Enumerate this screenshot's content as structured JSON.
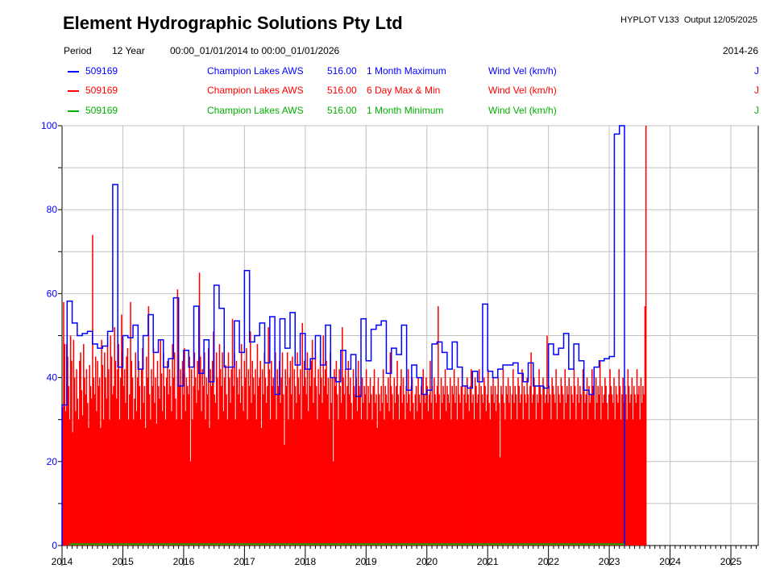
{
  "header": {
    "title": "Element Hydrographic Solutions Pty Ltd",
    "program": "HYPLOT V133",
    "output": "Output 12/05/2025"
  },
  "period": {
    "label": "Period",
    "length": "12 Year",
    "range": "00:00_01/01/2014 to 00:00_01/01/2026",
    "short": "2014-26"
  },
  "legend": [
    {
      "site": "509169",
      "name": "Champion Lakes AWS",
      "datum": "516.00",
      "stat": "1 Month Maximum",
      "variable": "Wind Vel (km/h)",
      "flag": "J",
      "color": "#0000ff"
    },
    {
      "site": "509169",
      "name": "Champion Lakes AWS",
      "datum": "516.00",
      "stat": "6 Day Max & Min",
      "variable": "Wind Vel (km/h)",
      "flag": "J",
      "color": "#ff0000"
    },
    {
      "site": "509169",
      "name": "Champion Lakes AWS",
      "datum": "516.00",
      "stat": "1 Month Minimum",
      "variable": "Wind Vel (km/h)",
      "flag": "J",
      "color": "#00b000"
    }
  ],
  "chart_data": {
    "type": "line",
    "xlabel": "",
    "ylabel": "",
    "ylim": [
      0,
      100
    ],
    "xlim": [
      2014.0,
      2025.45
    ],
    "y_ticks": [
      "0",
      "20",
      "40",
      "60",
      "80",
      "100"
    ],
    "x_ticks": [
      "2014",
      "2015",
      "2016",
      "2017",
      "2018",
      "2019",
      "2020",
      "2021",
      "2022",
      "2023",
      "2024",
      "2025"
    ],
    "grid": true,
    "series": [
      {
        "name": "1 Month Maximum",
        "color": "#0000ff",
        "step": "month",
        "start": 2014.0,
        "values": [
          33.5,
          58.2,
          53,
          50,
          50.5,
          51,
          48,
          47,
          47.5,
          51,
          86,
          42.5,
          50,
          49.5,
          52.5,
          42,
          50,
          55,
          46,
          49,
          42.5,
          44.5,
          59,
          38,
          46.5,
          42.5,
          57,
          41,
          49,
          39,
          62,
          56.5,
          42.5,
          42.5,
          53.5,
          46,
          65.5,
          48.5,
          50,
          53,
          43.5,
          54.5,
          36,
          54,
          47,
          55.5,
          43,
          50.5,
          42,
          44.5,
          50,
          43,
          52.5,
          40,
          39,
          46.5,
          42,
          45.5,
          35.5,
          54,
          44,
          51.5,
          52.5,
          53.5,
          41,
          47,
          45.5,
          52.5,
          37,
          43,
          40,
          36,
          37,
          48,
          48.5,
          46,
          42,
          48.5,
          42.5,
          38,
          37.5,
          41.5,
          39,
          57.5,
          41.5,
          40,
          42,
          43,
          43,
          43.5,
          41,
          39,
          43.5,
          38,
          38,
          37.5,
          48,
          45.5,
          47,
          50.5,
          42,
          48,
          44,
          37,
          36,
          42.5,
          44,
          44.5,
          45,
          98,
          100
        ]
      },
      {
        "name": "6 Day Max & Min",
        "color": "#ff0000",
        "step": "6day",
        "start": 2014.0,
        "values": [
          33,
          58,
          48,
          32,
          48,
          45,
          38,
          30,
          50,
          44,
          27,
          49,
          40,
          32,
          42,
          35,
          30,
          44,
          46,
          37,
          31,
          48,
          40,
          36,
          42,
          34,
          28,
          43,
          38,
          35,
          74,
          40,
          36,
          45,
          32,
          44,
          38,
          40,
          28,
          49,
          43,
          30,
          46,
          40,
          35,
          48,
          42,
          30,
          50,
          45,
          36,
          38,
          52,
          44,
          35,
          42,
          48,
          30,
          40,
          55,
          46,
          38,
          42,
          34,
          45,
          47,
          30,
          36,
          58,
          44,
          40,
          30,
          35,
          46,
          32,
          40,
          44,
          38,
          30,
          42,
          47,
          34,
          38,
          28,
          45,
          40,
          57,
          36,
          30,
          42,
          38,
          47,
          34,
          40,
          29,
          44,
          38,
          35,
          49,
          41,
          32,
          46,
          38,
          30,
          40,
          44,
          36,
          42,
          38,
          32,
          48,
          40,
          46,
          35,
          30,
          61,
          46,
          38,
          42,
          30,
          44,
          36,
          47,
          32,
          40,
          38,
          36,
          45,
          20,
          42,
          30,
          38,
          46,
          40,
          34,
          44,
          37,
          65,
          45,
          32,
          42,
          38,
          46,
          30,
          40,
          36,
          47,
          28,
          42,
          38,
          44,
          51,
          36,
          34,
          46,
          40,
          30,
          48,
          42,
          38,
          46,
          32,
          40,
          43,
          36,
          30,
          46,
          40,
          34,
          42,
          54,
          38,
          46,
          30,
          44,
          40,
          36,
          42,
          34,
          48,
          38,
          32,
          44,
          40,
          47,
          30,
          42,
          38,
          51,
          34,
          44,
          40,
          36,
          42,
          30,
          48,
          38,
          40,
          44,
          28,
          42,
          36,
          46,
          40,
          34,
          38,
          52,
          42,
          30,
          44,
          38,
          40,
          36,
          46,
          30,
          42,
          38,
          44,
          34,
          40,
          46,
          36,
          24,
          42,
          38,
          46,
          30,
          40,
          44,
          36,
          45,
          30,
          42,
          38,
          34,
          46,
          40,
          36,
          42,
          30,
          53,
          38,
          44,
          40,
          36,
          46,
          32,
          42,
          38,
          44,
          49,
          34,
          40,
          46,
          38,
          30,
          42,
          36,
          44,
          40,
          34,
          50,
          38,
          42,
          44,
          36,
          40,
          30,
          46,
          34,
          40,
          20,
          42,
          38,
          44,
          36,
          30,
          42,
          38,
          34,
          52,
          40,
          36,
          42,
          30,
          38,
          44,
          36,
          40,
          34,
          30,
          42,
          38,
          36,
          40,
          32,
          44,
          38,
          36,
          30,
          40,
          34,
          38,
          36,
          42,
          30,
          38,
          34,
          40,
          36,
          30,
          38,
          42,
          34,
          36,
          28,
          40,
          36,
          32,
          38,
          34,
          42,
          30,
          38,
          36,
          34,
          40,
          32,
          46,
          38,
          36,
          30,
          40,
          34,
          38,
          44,
          36,
          30,
          38,
          42,
          34,
          40,
          36,
          30,
          38,
          34,
          42,
          36,
          32,
          38,
          40,
          34,
          30,
          36,
          38,
          32,
          40,
          36,
          34,
          38,
          30,
          42,
          36,
          34,
          40,
          38,
          32,
          36,
          44,
          34,
          38,
          30,
          40,
          36,
          34,
          38,
          57,
          36,
          30,
          40,
          34,
          38,
          36,
          42,
          32,
          38,
          36,
          34,
          40,
          30,
          38,
          36,
          42,
          34,
          38,
          30,
          40,
          36,
          34,
          38,
          42,
          30,
          36,
          38,
          34,
          40,
          36,
          32,
          38,
          42,
          34,
          36,
          30,
          40,
          38,
          34,
          36,
          42,
          30,
          38,
          36,
          34,
          40,
          38,
          32,
          36,
          42,
          34,
          30,
          38,
          36,
          40,
          34,
          38,
          32,
          36,
          40,
          34,
          21,
          38,
          36,
          42,
          34,
          30,
          38,
          36,
          40,
          34,
          38,
          30,
          36,
          42,
          34,
          38,
          36,
          30,
          40,
          38,
          34,
          36,
          42,
          30,
          38,
          36,
          34,
          40,
          36,
          30,
          38,
          46,
          34,
          36,
          40,
          38,
          30,
          36,
          34,
          42,
          38,
          36,
          30,
          40,
          38,
          34,
          36,
          50,
          34,
          38,
          36,
          30,
          40,
          38,
          36,
          34,
          42,
          30,
          38,
          36,
          34,
          40,
          38,
          36,
          30,
          42,
          34,
          38,
          36,
          40,
          30,
          38,
          36,
          34,
          42,
          38,
          30,
          36,
          40,
          34,
          38,
          36,
          30,
          42,
          38,
          34,
          36,
          40,
          30,
          38,
          34,
          36,
          42,
          38,
          36,
          30,
          40,
          34,
          38,
          36,
          44,
          30,
          38,
          34,
          36,
          40,
          38,
          34,
          30,
          36,
          42,
          38,
          36,
          34,
          40,
          30,
          38,
          36,
          34,
          42,
          38,
          30,
          36,
          40,
          34,
          38,
          36,
          30,
          42,
          38,
          34,
          36,
          40,
          30,
          38,
          36,
          34,
          42,
          36,
          38,
          30,
          40,
          34,
          38,
          36,
          57,
          100
        ]
      },
      {
        "name": "1 Month Minimum",
        "color": "#00b000",
        "step": "month",
        "start": 2014.0,
        "values": [
          0.3
        ]
      }
    ]
  }
}
